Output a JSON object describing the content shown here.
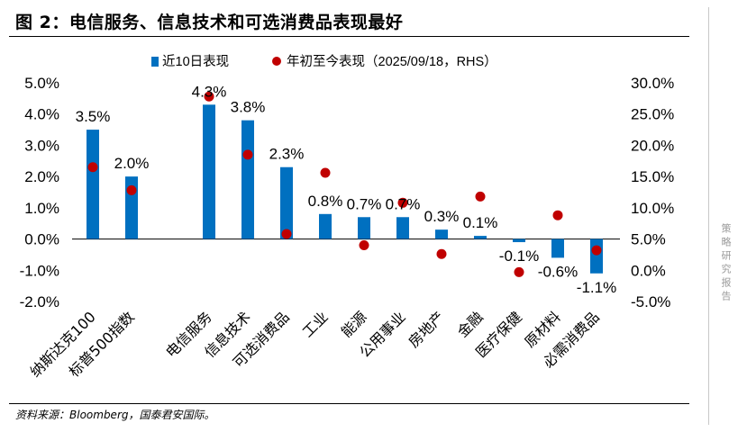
{
  "title": "图 2：电信服务、信息技术和可选消费品表现最好",
  "source": "资料来源：Bloomberg，国泰君安国际。",
  "side_label": "策略研究报告",
  "colors": {
    "bar": "#0070C0",
    "dot": "#C00000"
  },
  "chart_data": {
    "type": "bar",
    "title": "",
    "categories": [
      "纳斯达克100",
      "标普500指数",
      "",
      "电信服务",
      "信息技术",
      "可选消费品",
      "工业",
      "能源",
      "公用事业",
      "房地产",
      "金融",
      "医疗保健",
      "原材料",
      "必需消费品"
    ],
    "series": [
      {
        "name": "近10日表现",
        "type": "bar",
        "axis": "left",
        "values": [
          3.5,
          2.0,
          null,
          4.3,
          3.8,
          2.3,
          0.8,
          0.7,
          0.7,
          0.3,
          0.1,
          -0.1,
          -0.6,
          -1.1
        ],
        "labels": [
          "3.5%",
          "2.0%",
          "",
          "4.3%",
          "3.8%",
          "2.3%",
          "0.8%",
          "0.7%",
          "0.7%",
          "0.3%",
          "0.1%",
          "-0.1%",
          "-0.6%",
          "-1.1%"
        ]
      },
      {
        "name": "年初至今表现（2025/09/18，RHS）",
        "type": "scatter",
        "axis": "right",
        "values": [
          16.5,
          12.8,
          null,
          27.8,
          18.5,
          5.8,
          15.6,
          4.0,
          10.8,
          2.6,
          11.8,
          -0.3,
          8.8,
          3.2
        ]
      }
    ],
    "y_left": {
      "min": -2.0,
      "max": 5.0,
      "step": 1.0,
      "ticks": [
        "-2.0%",
        "-1.0%",
        "0.0%",
        "1.0%",
        "2.0%",
        "3.0%",
        "4.0%",
        "5.0%"
      ]
    },
    "y_right": {
      "min": -5.0,
      "max": 30.0,
      "step": 5.0,
      "ticks": [
        "-5.0%",
        "0.0%",
        "5.0%",
        "10.0%",
        "15.0%",
        "20.0%",
        "25.0%",
        "30.0%"
      ]
    },
    "legend_position": "top-center"
  }
}
